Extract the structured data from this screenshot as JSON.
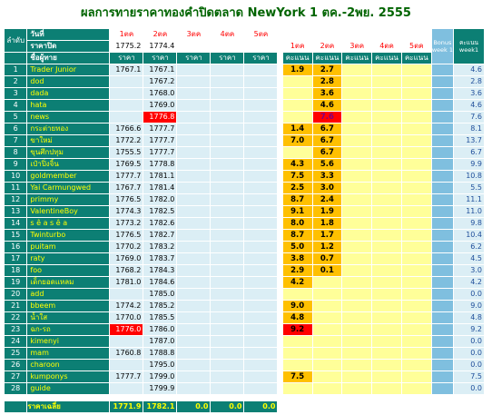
{
  "title": "ผลการทายราคาทองคำปิดตลาด NewYork 1 ตค.-2พย. 2555",
  "header": {
    "seq_label": "ลำดับ",
    "day_label": "วันที่",
    "close_label": "ราคาปิด",
    "name_label": "ชื่อผู้ทาย",
    "days": [
      "1ตค",
      "2ตค",
      "3ตค",
      "4ตค",
      "5ตค"
    ],
    "price_sub": "ราคา",
    "score_sub": "คะแนน",
    "bonus_label": "Bonus week 1",
    "total_label": "คะแนน week1",
    "closing_prices": [
      "1775.2",
      "1774.4",
      "",
      "",
      ""
    ]
  },
  "chart_data": {
    "type": "table",
    "columns": [
      "ลำดับ",
      "ชื่อผู้ทาย",
      "1ตค ราคา",
      "2ตค ราคา",
      "3ตค ราคา",
      "4ตค ราคา",
      "5ตค ราคา",
      "1ตค คะแนน",
      "2ตค คะแนน",
      "3ตค คะแนน",
      "4ตค คะแนน",
      "5ตค คะแนน",
      "Bonus week 1",
      "คะแนน week1"
    ],
    "rows": [
      {
        "n": "1",
        "name": "Trader Junior",
        "p1": "1767.1",
        "p2": "1767.1",
        "s1": "1.9",
        "s2": "2.7",
        "total": "4.6"
      },
      {
        "n": "2",
        "name": "dod",
        "p1": "",
        "p2": "1767.2",
        "s1": "",
        "s2": "2.8",
        "total": "2.8"
      },
      {
        "n": "3",
        "name": "dada",
        "p1": "",
        "p2": "1768.0",
        "s1": "",
        "s2": "3.6",
        "total": "3.6"
      },
      {
        "n": "4",
        "name": "hata",
        "p1": "",
        "p2": "1769.0",
        "s1": "",
        "s2": "4.6",
        "total": "4.6"
      },
      {
        "n": "5",
        "name": "news",
        "p1": "",
        "p2": "1776.8",
        "s1": "",
        "s2": "7.6",
        "total": "7.6"
      },
      {
        "n": "6",
        "name": "กระต่ายทอง",
        "p1": "1766.6",
        "p2": "1777.7",
        "s1": "1.4",
        "s2": "6.7",
        "total": "8.1"
      },
      {
        "n": "7",
        "name": "ขาใหม่",
        "p1": "1772.2",
        "p2": "1777.7",
        "s1": "7.0",
        "s2": "6.7",
        "total": "13.7"
      },
      {
        "n": "8",
        "name": "ขุนศึกปทุม",
        "p1": "1755.5",
        "p2": "1777.7",
        "s1": "",
        "s2": "6.7",
        "total": "6.7"
      },
      {
        "n": "9",
        "name": "เป๋าปิ่งจิ้น",
        "p1": "1769.5",
        "p2": "1778.8",
        "s1": "4.3",
        "s2": "5.6",
        "total": "9.9"
      },
      {
        "n": "10",
        "name": "goldmember",
        "p1": "1777.7",
        "p2": "1781.1",
        "s1": "7.5",
        "s2": "3.3",
        "total": "10.8"
      },
      {
        "n": "11",
        "name": "Yai Carmungwed",
        "p1": "1767.7",
        "p2": "1781.4",
        "s1": "2.5",
        "s2": "3.0",
        "total": "5.5"
      },
      {
        "n": "12",
        "name": "primmy",
        "p1": "1776.5",
        "p2": "1782.0",
        "s1": "8.7",
        "s2": "2.4",
        "total": "11.1"
      },
      {
        "n": "13",
        "name": "ValentineBoy",
        "p1": "1774.3",
        "p2": "1782.5",
        "s1": "9.1",
        "s2": "1.9",
        "total": "11.0"
      },
      {
        "n": "14",
        "name": "s ê a s ê a",
        "p1": "1773.2",
        "p2": "1782.6",
        "s1": "8.0",
        "s2": "1.8",
        "total": "9.8"
      },
      {
        "n": "15",
        "name": "Twinturbo",
        "p1": "1776.5",
        "p2": "1782.7",
        "s1": "8.7",
        "s2": "1.7",
        "total": "10.4"
      },
      {
        "n": "16",
        "name": "puitam",
        "p1": "1770.2",
        "p2": "1783.2",
        "s1": "5.0",
        "s2": "1.2",
        "total": "6.2"
      },
      {
        "n": "17",
        "name": "raty",
        "p1": "1769.0",
        "p2": "1783.7",
        "s1": "3.8",
        "s2": "0.7",
        "total": "4.5"
      },
      {
        "n": "18",
        "name": "foo",
        "p1": "1768.2",
        "p2": "1784.3",
        "s1": "2.9",
        "s2": "0.1",
        "total": "3.0"
      },
      {
        "n": "19",
        "name": "เด็กยอดแหลม",
        "p1": "1781.0",
        "p2": "1784.6",
        "s1": "4.2",
        "s2": "",
        "total": "4.2"
      },
      {
        "n": "20",
        "name": "add",
        "p1": "",
        "p2": "1785.0",
        "s1": "",
        "s2": "",
        "total": "0.0"
      },
      {
        "n": "21",
        "name": "bbeem",
        "p1": "1774.2",
        "p2": "1785.2",
        "s1": "9.0",
        "s2": "",
        "total": "9.0"
      },
      {
        "n": "22",
        "name": "น้ำใส",
        "p1": "1770.0",
        "p2": "1785.5",
        "s1": "4.8",
        "s2": "",
        "total": "4.8"
      },
      {
        "n": "23",
        "name": "ฉก-รถ",
        "p1": "1776.0",
        "p2": "1786.0",
        "s1": "9.2",
        "s2": "",
        "total": "9.2"
      },
      {
        "n": "24",
        "name": "kimenyi",
        "p1": "",
        "p2": "1787.0",
        "s1": "",
        "s2": "",
        "total": "0.0"
      },
      {
        "n": "25",
        "name": "mam",
        "p1": "1760.8",
        "p2": "1788.8",
        "s1": "",
        "s2": "",
        "total": "0.0"
      },
      {
        "n": "26",
        "name": "charoon",
        "p1": "",
        "p2": "1795.0",
        "s1": "",
        "s2": "",
        "total": "0.0"
      },
      {
        "n": "27",
        "name": "kumponys",
        "p1": "1777.7",
        "p2": "1799.0",
        "s1": "7.5",
        "s2": "",
        "total": "7.5"
      },
      {
        "n": "28",
        "name": "guide",
        "p1": "",
        "p2": "1799.9",
        "s1": "",
        "s2": "",
        "total": "0.0"
      }
    ],
    "average": {
      "label": "ราคาเฉลี่ย",
      "p1": "1771.9",
      "p2": "1782.1",
      "p3": "0.0",
      "p4": "0.0",
      "p5": "0.0"
    }
  },
  "colors": {
    "title": "#006400",
    "teal": "#0c7f74",
    "name_text": "#ffff00",
    "price_cell": "#dbeef5",
    "score_cell": "#ffff99",
    "score_highlight": "#ffc000",
    "alert_red": "#ff0000",
    "bonus": "#7fbfdf"
  }
}
